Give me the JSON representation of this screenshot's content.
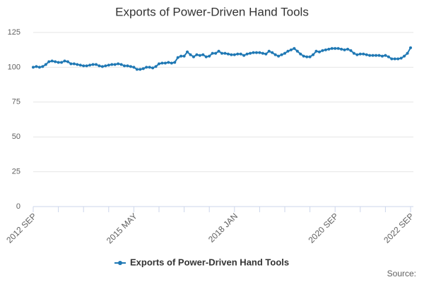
{
  "chart_data": {
    "type": "line",
    "title": "Exports of Power-Driven Hand Tools",
    "categories": [
      "2012 SEP",
      null,
      null,
      null,
      null,
      null,
      null,
      null,
      null,
      null,
      null,
      null,
      null,
      null,
      null,
      null,
      null,
      null,
      null,
      null,
      null,
      null,
      null,
      null,
      null,
      null,
      null,
      null,
      null,
      null,
      null,
      null,
      "2015 MAY",
      null,
      null,
      null,
      null,
      null,
      null,
      null,
      null,
      null,
      null,
      null,
      null,
      null,
      null,
      null,
      null,
      null,
      null,
      null,
      null,
      null,
      null,
      null,
      null,
      null,
      null,
      null,
      null,
      null,
      null,
      null,
      "2018 JAN",
      null,
      null,
      null,
      null,
      null,
      null,
      null,
      null,
      null,
      null,
      null,
      null,
      null,
      null,
      null,
      null,
      null,
      null,
      null,
      null,
      null,
      null,
      null,
      null,
      null,
      null,
      null,
      null,
      null,
      null,
      null,
      "2020 SEP",
      null,
      null,
      null,
      null,
      null,
      null,
      null,
      null,
      null,
      null,
      null,
      null,
      null,
      null,
      null,
      null,
      null,
      null,
      null,
      null,
      null,
      null,
      null,
      "2022 SEP"
    ],
    "series": [
      {
        "name": "Exports of Power-Driven Hand Tools",
        "color": "#1f78b4",
        "values": [
          100,
          100.5,
          100,
          100.5,
          102,
          104,
          104.5,
          104,
          103.5,
          103.5,
          104.5,
          104,
          102.5,
          102.5,
          102,
          101.5,
          101,
          101,
          101.5,
          102,
          102,
          101,
          100.5,
          101,
          101.5,
          102,
          102,
          102.5,
          102,
          101,
          101,
          100.5,
          100,
          98.5,
          98.5,
          99,
          100,
          100,
          99.5,
          100.5,
          102.5,
          103,
          103,
          103.5,
          103,
          103.5,
          107,
          108,
          108,
          111,
          109,
          107.5,
          109,
          108.5,
          109,
          107.5,
          108,
          110,
          110,
          111.5,
          110,
          110,
          109.5,
          109,
          109,
          109.5,
          109.5,
          108.5,
          109.5,
          110,
          110.5,
          110.5,
          110.5,
          110,
          109.5,
          111.5,
          110.5,
          109,
          108,
          109,
          110,
          111.5,
          112.5,
          113.5,
          111.5,
          109.5,
          108,
          107.5,
          107.5,
          109,
          111.5,
          111,
          112,
          112.5,
          113,
          113.5,
          113.5,
          113.5,
          113,
          112.5,
          113,
          112,
          110,
          109,
          109.5,
          109.5,
          109,
          108.5,
          108.5,
          108.5,
          108.5,
          108,
          108.5,
          107.5,
          106,
          106,
          106,
          106.5,
          108,
          110,
          114
        ]
      }
    ],
    "ylim": [
      0,
      125
    ],
    "yticks": [
      0,
      25,
      50,
      75,
      100,
      125
    ],
    "grid": true,
    "source": "Source:"
  }
}
